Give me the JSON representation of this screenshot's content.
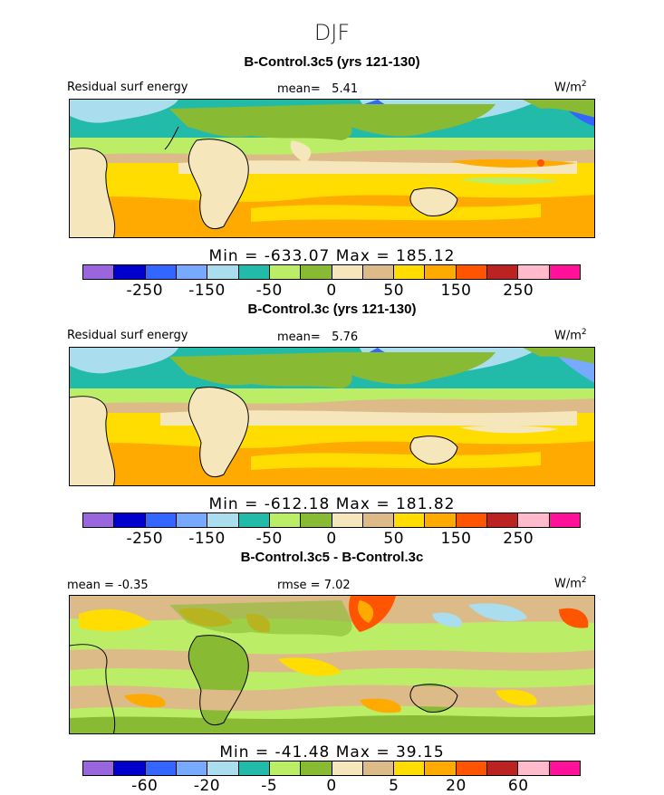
{
  "season": "DJF",
  "colors": [
    "#9966dd",
    "#0000cc",
    "#3366ff",
    "#77aaff",
    "#aaddee",
    "#22bbaa",
    "#bbee66",
    "#88bb33",
    "#f5e6bb",
    "#ddbb88",
    "#ffdd00",
    "#ffaa00",
    "#ff5500",
    "#bb2222",
    "#ffbbcc",
    "#ff1199"
  ],
  "panels": [
    {
      "title": "B-Control.3c5 (yrs 121-130)",
      "left_label": "Residual surf energy",
      "mean_label": "mean=",
      "mean_value": "5.41",
      "units": "W/m",
      "units_sup": "2",
      "minmax": "Min = -633.07 Max = 185.12",
      "ticks": [
        "-250",
        "-150",
        "-50",
        "0",
        "50",
        "150",
        "250"
      ]
    },
    {
      "title": "B-Control.3c (yrs 121-130)",
      "left_label": "Residual surf energy",
      "mean_label": "mean=",
      "mean_value": "5.76",
      "units": "W/m",
      "units_sup": "2",
      "minmax": "Min = -612.18 Max = 181.82",
      "ticks": [
        "-250",
        "-150",
        "-50",
        "0",
        "50",
        "150",
        "250"
      ]
    },
    {
      "title": "B-Control.3c5 - B-Control.3c",
      "left_label": "mean = -0.35",
      "mid_label": "rmse = 7.02",
      "units": "W/m",
      "units_sup": "2",
      "minmax": "Min = -41.48 Max = 39.15",
      "ticks": [
        "-60",
        "-20",
        "-5",
        "0",
        "5",
        "20",
        "60"
      ]
    }
  ]
}
